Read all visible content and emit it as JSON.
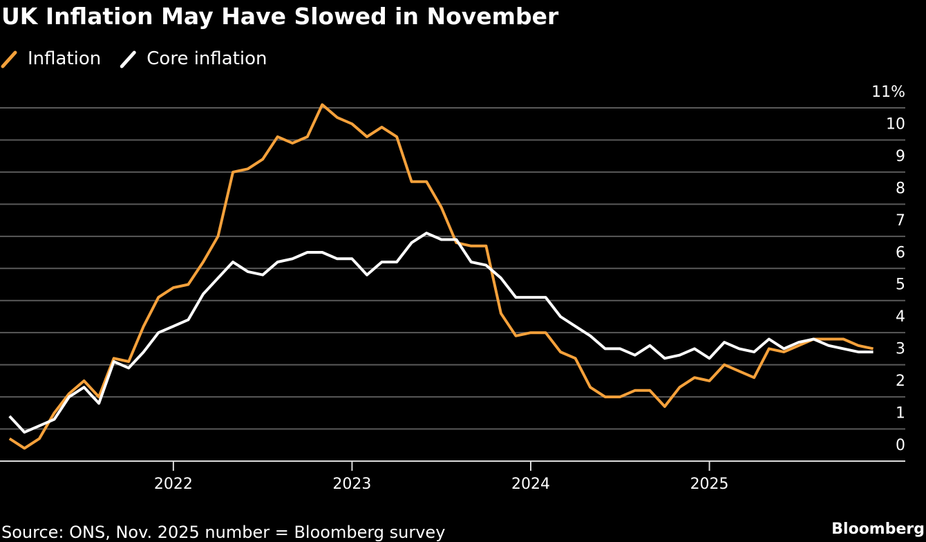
{
  "chart_data": {
    "type": "line",
    "title": "UK Inflation May Have Slowed in November",
    "source": "Source: ONS, Nov. 2025 number = Bloomberg survey",
    "brand": "Bloomberg",
    "x": [
      "2021-01",
      "2021-02",
      "2021-03",
      "2021-04",
      "2021-05",
      "2021-06",
      "2021-07",
      "2021-08",
      "2021-09",
      "2021-10",
      "2021-11",
      "2021-12",
      "2022-01",
      "2022-02",
      "2022-03",
      "2022-04",
      "2022-05",
      "2022-06",
      "2022-07",
      "2022-08",
      "2022-09",
      "2022-10",
      "2022-11",
      "2022-12",
      "2023-01",
      "2023-02",
      "2023-03",
      "2023-04",
      "2023-05",
      "2023-06",
      "2023-07",
      "2023-08",
      "2023-09",
      "2023-10",
      "2023-11",
      "2023-12",
      "2024-01",
      "2024-02",
      "2024-03",
      "2024-04",
      "2024-05",
      "2024-06",
      "2024-07",
      "2024-08",
      "2024-09",
      "2024-10",
      "2024-11",
      "2024-12",
      "2025-01",
      "2025-02",
      "2025-03",
      "2025-04",
      "2025-05",
      "2025-06",
      "2025-07",
      "2025-08",
      "2025-09",
      "2025-10",
      "2025-11"
    ],
    "series": [
      {
        "name": "Inflation",
        "color": "#f5a13b",
        "values": [
          0.7,
          0.4,
          0.7,
          1.5,
          2.1,
          2.5,
          2.0,
          3.2,
          3.1,
          4.2,
          5.1,
          5.4,
          5.5,
          6.2,
          7.0,
          9.0,
          9.1,
          9.4,
          10.1,
          9.9,
          10.1,
          11.1,
          10.7,
          10.5,
          10.1,
          10.4,
          10.1,
          8.7,
          8.7,
          7.9,
          6.8,
          6.7,
          6.7,
          4.6,
          3.9,
          4.0,
          4.0,
          3.4,
          3.2,
          2.3,
          2.0,
          2.0,
          2.2,
          2.2,
          1.7,
          2.3,
          2.6,
          2.5,
          3.0,
          2.8,
          2.6,
          3.5,
          3.4,
          3.6,
          3.8,
          3.8,
          3.8,
          3.6,
          3.5
        ]
      },
      {
        "name": "Core inflation",
        "color": "#ffffff",
        "values": [
          1.4,
          0.9,
          1.1,
          1.3,
          2.0,
          2.3,
          1.8,
          3.1,
          2.9,
          3.4,
          4.0,
          4.2,
          4.4,
          5.2,
          5.7,
          6.2,
          5.9,
          5.8,
          6.2,
          6.3,
          6.5,
          6.5,
          6.3,
          6.3,
          5.8,
          6.2,
          6.2,
          6.8,
          7.1,
          6.9,
          6.9,
          6.2,
          6.1,
          5.7,
          5.1,
          5.1,
          5.1,
          4.5,
          4.2,
          3.9,
          3.5,
          3.5,
          3.3,
          3.6,
          3.2,
          3.3,
          3.5,
          3.2,
          3.7,
          3.5,
          3.4,
          3.8,
          3.5,
          3.7,
          3.8,
          3.6,
          3.5,
          3.4,
          3.4
        ]
      }
    ],
    "xlim": [
      2021,
      2026.1
    ],
    "xticks": [
      2022,
      2023,
      2024,
      2025
    ],
    "ylim": [
      0,
      11
    ],
    "yticks": [
      0,
      1,
      2,
      3,
      4,
      5,
      6,
      7,
      8,
      9,
      10,
      {
        "value": 11,
        "label": "11%"
      }
    ],
    "grid": true
  }
}
